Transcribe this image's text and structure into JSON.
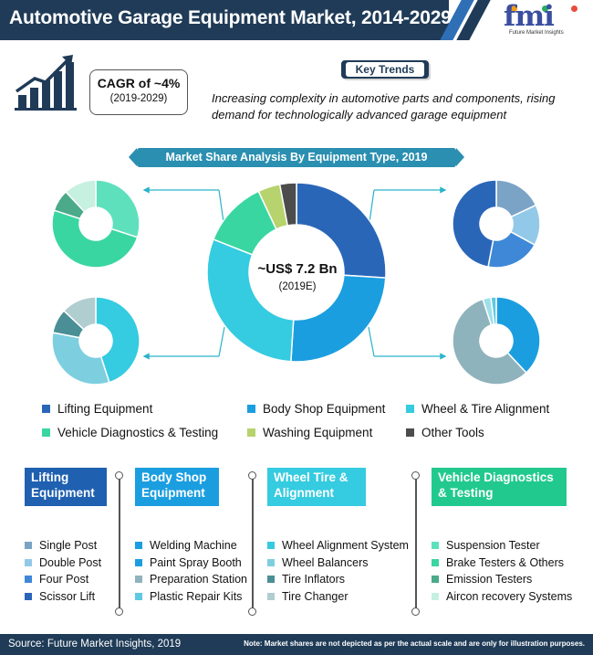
{
  "header": {
    "title": "Automotive Garage Equipment Market, 2014-2029"
  },
  "logo": {
    "text": "fmi",
    "subtitle": "Future Market Insights"
  },
  "cagr": {
    "title": "CAGR of ~4%",
    "period": "(2019-2029)"
  },
  "key_trends": {
    "label": "Key Trends",
    "text": "Increasing complexity in automotive parts and components, rising demand for technologically advanced garage equipment"
  },
  "market_share": {
    "banner": "Market Share Analysis By Equipment Type, 2019",
    "center_value": "~US$ 7.2 Bn",
    "center_sub": "(2019E)"
  },
  "colors": {
    "navy": "#1f3b57",
    "lifting": "#2a66b8",
    "body_shop": "#1b9ee0",
    "wheel": "#35cbe0",
    "diagnostics": "#3ad6a2",
    "washing": "#b7d36d",
    "other": "#4c4c4c",
    "teal_banner": "#2a8fb0"
  },
  "chart_data": [
    {
      "type": "pie",
      "name": "main",
      "categories": [
        "Lifting Equipment",
        "Body Shop Equipment",
        "Wheel & Tire Alignment",
        "Vehicle Diagnostics & Testing",
        "Washing Equipment",
        "Other Tools"
      ],
      "values": [
        26,
        25,
        30,
        12,
        4,
        3
      ],
      "colors": [
        "#2a66b8",
        "#1b9ee0",
        "#35cbe0",
        "#3ad6a2",
        "#b7d36d",
        "#4c4c4c"
      ]
    },
    {
      "type": "pie",
      "name": "vehicle_diagnostics_testing",
      "categories": [
        "Suspension Tester",
        "Brake Testers & Others",
        "Emission Testers",
        "Aircon recovery Systems"
      ],
      "values": [
        30,
        50,
        8,
        12
      ],
      "colors": [
        "#5fe0bd",
        "#3ad6a2",
        "#4aaa8a",
        "#c6f0e0"
      ]
    },
    {
      "type": "pie",
      "name": "wheel_tire_alignment",
      "categories": [
        "Wheel Alignment System",
        "Wheel Balancers",
        "Tire Inflators",
        "Tire Changer"
      ],
      "values": [
        45,
        33,
        9,
        13
      ],
      "colors": [
        "#35cbe0",
        "#7dcfe0",
        "#4a8f95",
        "#b0cdd0"
      ]
    },
    {
      "type": "pie",
      "name": "lifting_equipment",
      "categories": [
        "Single Post",
        "Double Post",
        "Four Post",
        "Scissor Lift"
      ],
      "values": [
        18,
        15,
        20,
        47
      ],
      "colors": [
        "#7aa3c6",
        "#93c9e8",
        "#3f88d8",
        "#2a66b8"
      ]
    },
    {
      "type": "pie",
      "name": "body_shop_equipment",
      "categories": [
        "Welding Machine",
        "Paint Spray Booth",
        "Preparation Station",
        "Plastic Repair Kits"
      ],
      "values": [
        38,
        57,
        3,
        2
      ],
      "colors": [
        "#1b9ee0",
        "#8fb3bc",
        "#9ee0ea",
        "#5ec9e0"
      ]
    }
  ],
  "legend": [
    {
      "label": "Lifting Equipment",
      "color": "#2a66b8"
    },
    {
      "label": "Body Shop Equipment",
      "color": "#1b9ee0"
    },
    {
      "label": "Wheel & Tire Alignment",
      "color": "#35cbe0"
    },
    {
      "label": "Vehicle Diagnostics & Testing",
      "color": "#3ad6a2"
    },
    {
      "label": "Washing Equipment",
      "color": "#b7d36d"
    },
    {
      "label": "Other Tools",
      "color": "#4c4c4c"
    }
  ],
  "categories": [
    {
      "title": "Lifting Equipment",
      "color": "#1f60b0",
      "items": [
        {
          "label": "Single Post",
          "color": "#7aa3c6"
        },
        {
          "label": "Double Post",
          "color": "#93c9e8"
        },
        {
          "label": "Four Post",
          "color": "#3f88d8"
        },
        {
          "label": "Scissor Lift",
          "color": "#2a66b8"
        }
      ]
    },
    {
      "title": "Body Shop Equipment",
      "color": "#1b9ee0",
      "items": [
        {
          "label": "Welding Machine",
          "color": "#1b9ee0"
        },
        {
          "label": "Paint Spray Booth",
          "color": "#1b9ee0"
        },
        {
          "label": "Preparation Station",
          "color": "#8fb3bc"
        },
        {
          "label": "Plastic Repair Kits",
          "color": "#5ec9e0"
        }
      ]
    },
    {
      "title": "Wheel Tire & Alignment",
      "color": "#35cbe0",
      "items": [
        {
          "label": "Wheel Alignment System",
          "color": "#35cbe0"
        },
        {
          "label": "Wheel Balancers",
          "color": "#7dcfe0"
        },
        {
          "label": "Tire Inflators",
          "color": "#4a8f95"
        },
        {
          "label": "Tire Changer",
          "color": "#b0cdd0"
        }
      ]
    },
    {
      "title": "Vehicle Diagnostics & Testing",
      "color": "#22c98e",
      "items": [
        {
          "label": "Suspension Tester",
          "color": "#5fe0bd"
        },
        {
          "label": "Brake Testers & Others",
          "color": "#3ad6a2"
        },
        {
          "label": "Emission Testers",
          "color": "#4aaa8a"
        },
        {
          "label": "Aircon recovery Systems",
          "color": "#c6f0e0"
        }
      ]
    }
  ],
  "footer": {
    "source": "Source: Future Market Insights, 2019",
    "note": "Note: Market shares are not depicted as per the actual scale and are only for illustration purposes."
  }
}
